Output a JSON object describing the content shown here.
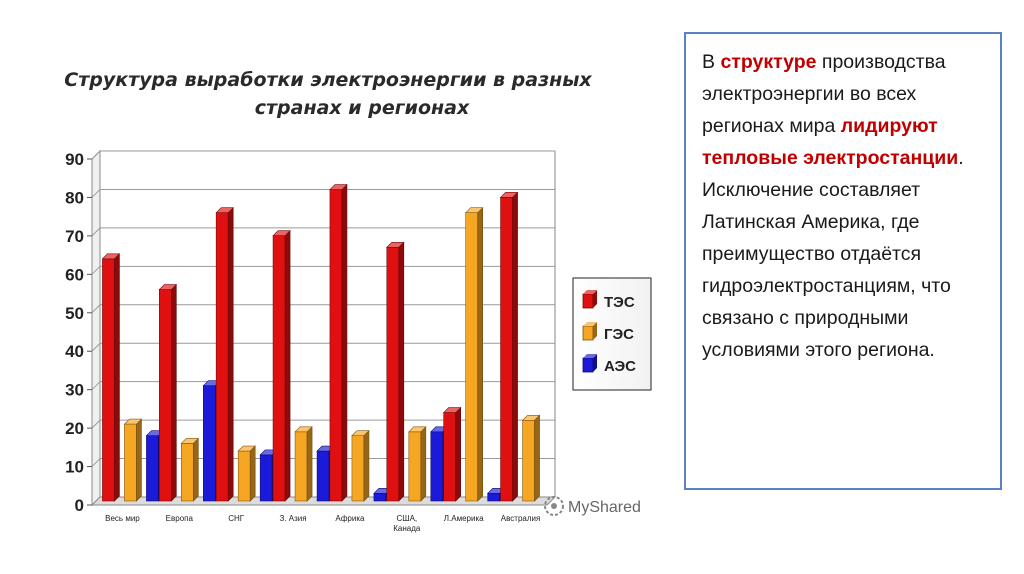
{
  "chart_data": {
    "type": "bar",
    "title_lines": [
      "Структура выработки электроэнергии в разных",
      "странах и регионах"
    ],
    "categories": [
      [
        "Весь мир"
      ],
      [
        "Европа"
      ],
      [
        "СНГ"
      ],
      [
        "З. Азия"
      ],
      [
        "Африка"
      ],
      [
        "США,",
        "Канада"
      ],
      [
        "Л.Америка"
      ],
      [
        "Австралия"
      ]
    ],
    "series": [
      {
        "name": "ТЭС",
        "color": "#e01010",
        "values": [
          63,
          55,
          75,
          69,
          81,
          66,
          23,
          79
        ]
      },
      {
        "name": "ГЭС",
        "color": "#f5a623",
        "values": [
          20,
          15,
          13,
          18,
          17,
          18,
          75,
          21
        ]
      },
      {
        "name": "АЭС",
        "color": "#1a1ad8",
        "values": [
          17,
          30,
          12,
          13,
          2,
          18,
          2,
          null
        ]
      }
    ],
    "yticks": [
      "0",
      "10",
      "20",
      "30",
      "40",
      "50",
      "60",
      "70",
      "80",
      "90"
    ],
    "ylim": [
      0,
      90
    ],
    "grid": true,
    "legend_position": "right"
  },
  "watermark": "MyShared",
  "text": {
    "p1": "В ",
    "p2": "структуре",
    "p3": " производства электроэнергии во всех регионах мира ",
    "p4": "лидируют тепловые электростанции",
    "p5": ". Исключение составляет Латинская Америка, где преимущество отдаётся гидроэлектростанциям, что связано с природными условиями этого региона."
  }
}
